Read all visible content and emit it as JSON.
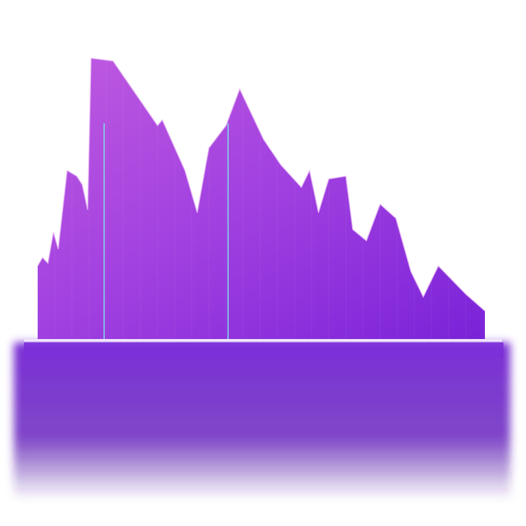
{
  "chart_data": {
    "type": "area",
    "x": [
      55,
      62,
      70,
      78,
      85,
      98,
      112,
      120,
      128,
      133,
      165,
      230,
      237,
      270,
      288,
      305,
      330,
      350,
      385,
      410,
      440,
      452,
      465,
      480,
      505,
      515,
      535,
      555,
      578,
      600,
      618,
      640,
      680,
      708
    ],
    "values": [
      26,
      29,
      27,
      38,
      32,
      60,
      58,
      55,
      46,
      100,
      99,
      76,
      78,
      60,
      45,
      68,
      76,
      89,
      71,
      62,
      54,
      60,
      45,
      57,
      58,
      39,
      35,
      48,
      43,
      24,
      15,
      26,
      16,
      10
    ],
    "xlim": [
      55,
      708
    ],
    "ylim": [
      0,
      100
    ],
    "color": "#8a2be2",
    "grid": true
  }
}
